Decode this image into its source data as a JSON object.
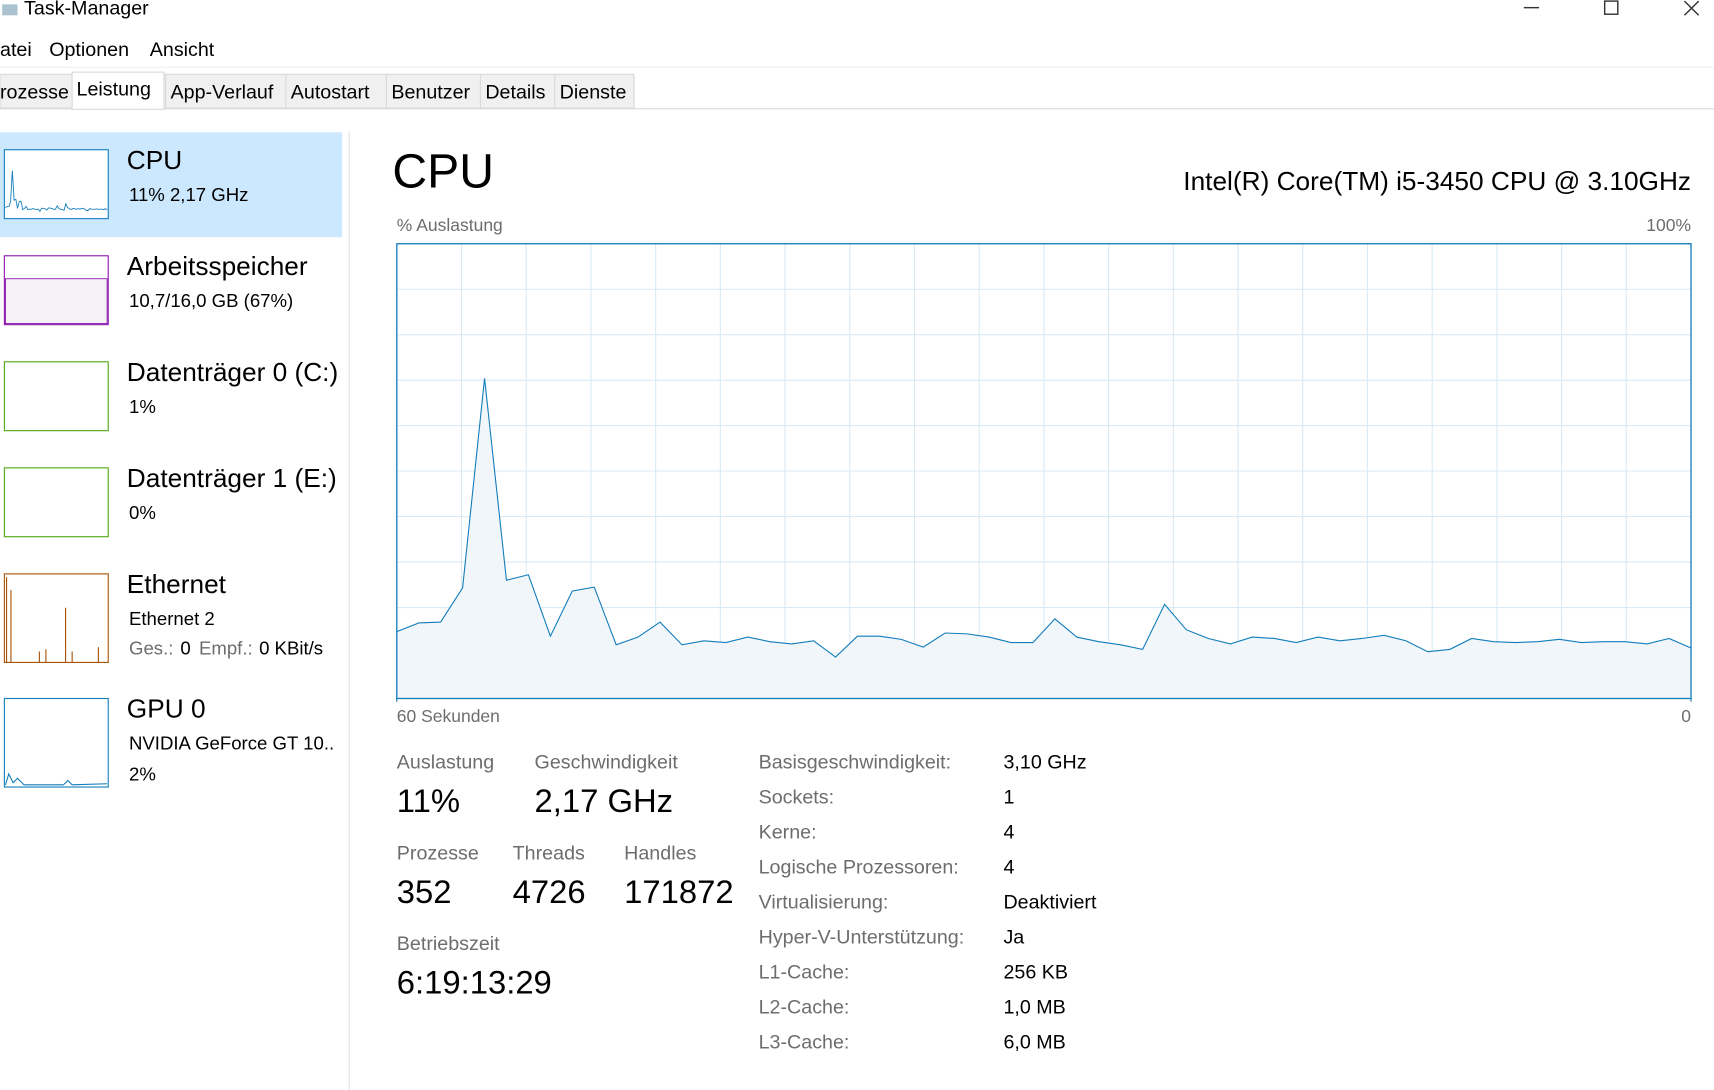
{
  "window": {
    "title": "Task-Manager"
  },
  "menu": [
    "atei",
    "Optionen",
    "Ansicht"
  ],
  "tabs": [
    "rozesse",
    "Leistung",
    "App-Verlauf",
    "Autostart",
    "Benutzer",
    "Details",
    "Dienste"
  ],
  "active_tab": 1,
  "sidebar": [
    {
      "name": "CPU",
      "lines": [
        "11%  2,17 GHz"
      ]
    },
    {
      "name": "Arbeitsspeicher",
      "lines": [
        "10,7/16,0 GB (67%)"
      ]
    },
    {
      "name": "Datenträger 0 (C:)",
      "lines": [
        "1%"
      ]
    },
    {
      "name": "Datenträger 1 (E:)",
      "lines": [
        "0%"
      ]
    },
    {
      "name": "Ethernet",
      "lines": [
        "Ethernet 2"
      ],
      "rates": [
        {
          "label": "Ges.:",
          "value": "0"
        },
        {
          "label": "Empf.:",
          "value": "0 KBit/s"
        }
      ]
    },
    {
      "name": "GPU 0",
      "lines": [
        "NVIDIA GeForce GT 10..",
        "2%"
      ]
    }
  ],
  "heading": "CPU",
  "model": "Intel(R) Core(TM) i5-3450 CPU @ 3.10GHz",
  "chart_data": {
    "type": "area",
    "y_label": "% Auslastung",
    "color": "#117dbb",
    "fill": "#f1f6fa",
    "grid_color": "#d9eaf4",
    "ylim": [
      0,
      100
    ],
    "yticks": [
      {
        "value": 100,
        "label": "100%"
      }
    ],
    "xlim": [
      60,
      0
    ],
    "xticks": [
      {
        "value": 60,
        "label": "60 Sekunden"
      },
      0
    ],
    "values": [
      14.7,
      16.6,
      16.8,
      24.3,
      70.4,
      26,
      27.2,
      13.7,
      23.6,
      24.5,
      11.8,
      13.5,
      16.8,
      11.8,
      12.7,
      12.3,
      13.5,
      12.5,
      12,
      12.7,
      9.1,
      13.7,
      13.7,
      13,
      11.3,
      14.4,
      14.2,
      13.5,
      12.3,
      12.3,
      17.5,
      13.5,
      12.5,
      11.8,
      10.8,
      20.7,
      15.1,
      13.2,
      12,
      13.5,
      13.2,
      12.3,
      13.5,
      12.7,
      13.2,
      13.9,
      12.7,
      10.3,
      10.8,
      13.2,
      12.5,
      12.3,
      12.5,
      13,
      12.3,
      12.5,
      12.5,
      12,
      13.2,
      11.1
    ]
  },
  "stats": {
    "row1": [
      {
        "label": "Auslastung",
        "value": "11%"
      },
      {
        "label": "Geschwindigkeit",
        "value": "2,17 GHz"
      }
    ],
    "row2": [
      {
        "label": "Prozesse",
        "value": 352
      },
      {
        "label": "Threads",
        "value": 4726
      },
      {
        "label": "Handles",
        "value": 171872
      }
    ],
    "uptime": {
      "label": "Betriebszeit",
      "value": "6:19:13:29"
    }
  },
  "details": [
    [
      "Basisgeschwindigkeit:",
      "3,10 GHz"
    ],
    [
      "Sockets:",
      "1"
    ],
    [
      "Kerne:",
      "4"
    ],
    [
      "Logische Prozessoren:",
      "4"
    ],
    [
      "Virtualisierung:",
      "Deaktiviert"
    ],
    [
      "Hyper-V-Unterstützung:",
      "Ja"
    ],
    [
      "L1-Cache:",
      "256 KB"
    ],
    [
      "L2-Cache:",
      "1,0 MB"
    ],
    [
      "L3-Cache:",
      "6,0 MB"
    ]
  ]
}
